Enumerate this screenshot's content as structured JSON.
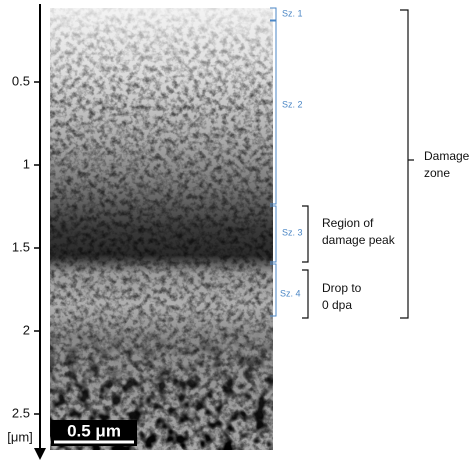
{
  "axis": {
    "unit": "[μm]",
    "ticks": [
      0.5,
      1,
      1.5,
      2,
      2.5
    ]
  },
  "scale_bar": "0.5 μm",
  "sub_zones": [
    "Sz. 1",
    "Sz. 2",
    "Sz. 3",
    "Sz. 4"
  ],
  "regions": [
    {
      "lines": [
        "Region of",
        "damage peak"
      ]
    },
    {
      "lines": [
        "Drop to",
        "0 dpa"
      ]
    },
    {
      "lines": [
        "Damage",
        "zone"
      ]
    }
  ]
}
